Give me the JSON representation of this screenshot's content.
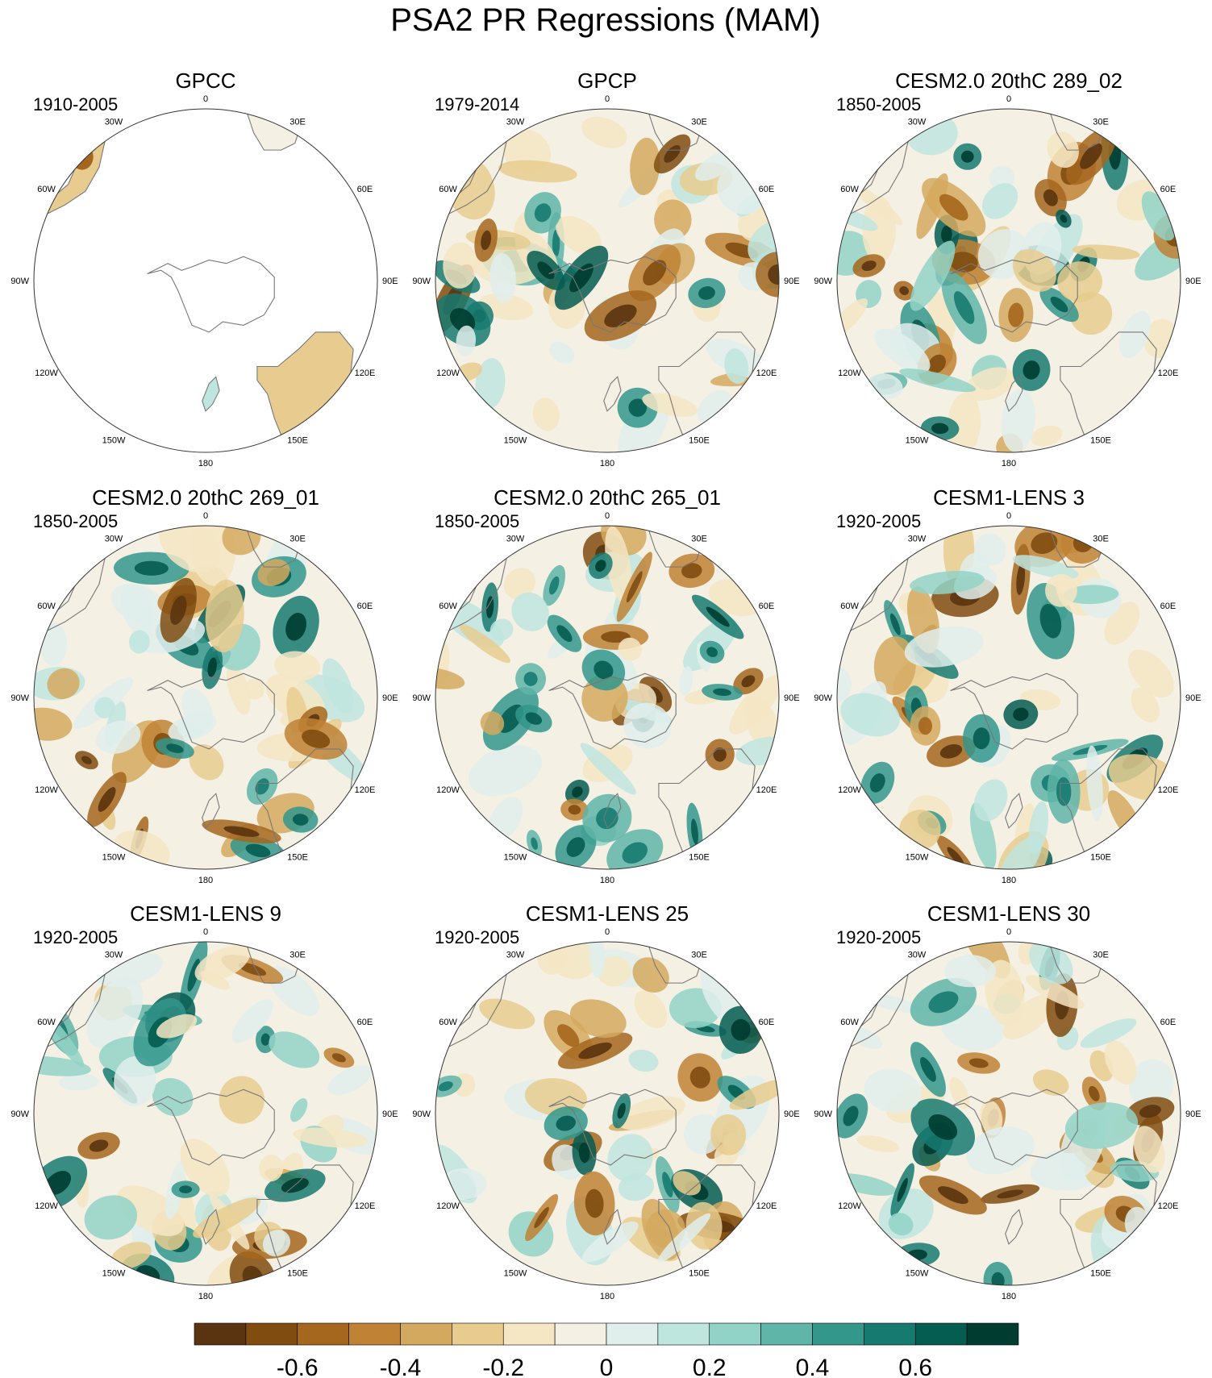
{
  "figure": {
    "title": "PSA2 PR Regressions (MAM)"
  },
  "colors": {
    "land_outline": "#777777",
    "frame": "#333333",
    "missing": "#ffffff"
  },
  "longitude_labels": [
    "0",
    "30E",
    "60E",
    "90E",
    "120E",
    "150E",
    "180",
    "150W",
    "120W",
    "90W",
    "60W",
    "30W"
  ],
  "panels": [
    {
      "title": "GPCC",
      "period": "1910-2005",
      "coverage": "land-only"
    },
    {
      "title": "GPCP",
      "period": "1979-2014",
      "coverage": "global"
    },
    {
      "title": "CESM2.0 20thC 289_02",
      "period": "1850-2005",
      "coverage": "global"
    },
    {
      "title": "CESM2.0 20thC 269_01",
      "period": "1850-2005",
      "coverage": "global"
    },
    {
      "title": "CESM2.0 20thC 265_01",
      "period": "1850-2005",
      "coverage": "global"
    },
    {
      "title": "CESM1-LENS 3",
      "period": "1920-2005",
      "coverage": "global"
    },
    {
      "title": "CESM1-LENS 9",
      "period": "1920-2005",
      "coverage": "global"
    },
    {
      "title": "CESM1-LENS 25",
      "period": "1920-2005",
      "coverage": "global"
    },
    {
      "title": "CESM1-LENS 30",
      "period": "1920-2005",
      "coverage": "global"
    }
  ],
  "colorbar": {
    "colors": [
      "#5a3410",
      "#804c10",
      "#a5661d",
      "#c08235",
      "#d3a95f",
      "#e8cc8f",
      "#f5e6c4",
      "#f4f0e4",
      "#e0eeec",
      "#bfe5df",
      "#92d3c7",
      "#5fb5a8",
      "#33978c",
      "#177a70",
      "#055c51",
      "#003c30"
    ],
    "tick_labels": [
      "-0.6",
      "-0.4",
      "-0.2",
      "0",
      "0.2",
      "0.4",
      "0.6"
    ]
  }
}
